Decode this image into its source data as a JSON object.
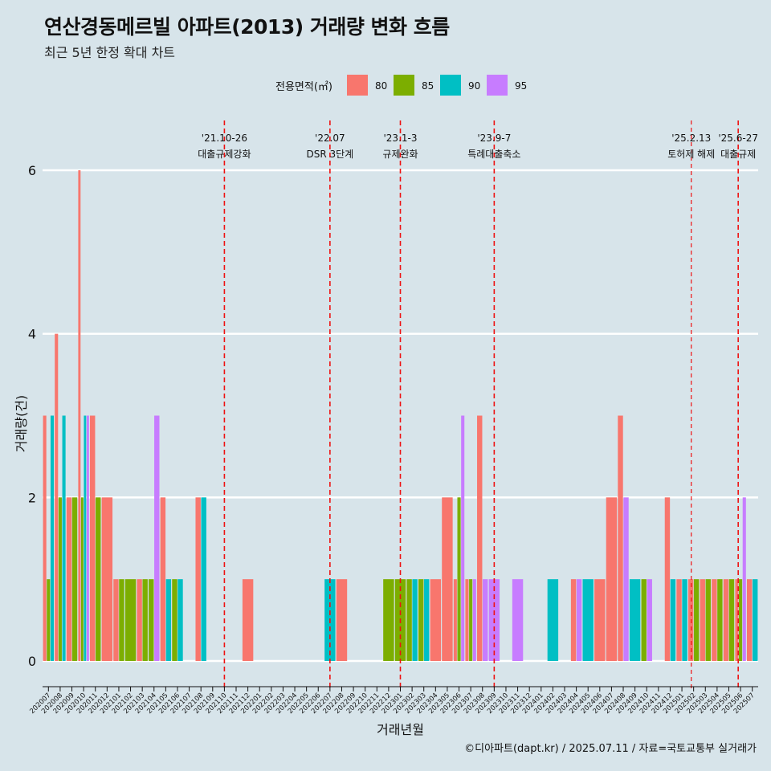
{
  "title": "연산경동메르빌 아파트(2013) 거래량 변화 흐름",
  "subtitle": "최근 5년 한정 확대 차트",
  "caption": "©디아파트(dapt.kr) / 2025.07.11 / 자료=국토교통부 실거래가",
  "chart_data": {
    "type": "bar",
    "xlabel": "거래년월",
    "ylabel": "거래량(건)",
    "ylim": [
      -0.3,
      6.6
    ],
    "yticks": [
      0,
      2,
      4,
      6
    ],
    "legend": {
      "title": "전용면적(㎡)",
      "position": "top",
      "items": [
        {
          "name": "80",
          "color": "#F8766D"
        },
        {
          "name": "85",
          "color": "#7CAE00"
        },
        {
          "name": "90",
          "color": "#00BFC4"
        },
        {
          "name": "95",
          "color": "#C77CFF"
        }
      ]
    },
    "categories": [
      "202007",
      "202008",
      "202009",
      "202010",
      "202011",
      "202012",
      "202101",
      "202102",
      "202103",
      "202104",
      "202105",
      "202106",
      "202107",
      "202108",
      "202109",
      "202110",
      "202111",
      "202112",
      "202201",
      "202202",
      "202203",
      "202204",
      "202205",
      "202206",
      "202207",
      "202208",
      "202209",
      "202210",
      "202211",
      "202212",
      "202301",
      "202302",
      "202303",
      "202304",
      "202305",
      "202306",
      "202307",
      "202308",
      "202309",
      "202310",
      "202311",
      "202312",
      "202401",
      "202402",
      "202403",
      "202404",
      "202405",
      "202406",
      "202407",
      "202408",
      "202409",
      "202410",
      "202411",
      "202412",
      "202501",
      "202502",
      "202503",
      "202504",
      "202505",
      "202506",
      "202507"
    ],
    "series": [
      {
        "name": "80",
        "values": [
          3,
          4,
          2,
          6,
          3,
          2,
          1,
          0,
          1,
          0,
          2,
          0,
          0,
          2,
          0,
          0,
          0,
          1,
          0,
          0,
          0,
          0,
          0,
          0,
          0,
          1,
          0,
          0,
          0,
          0,
          0,
          0,
          0,
          1,
          2,
          1,
          1,
          3,
          0,
          0,
          0,
          0,
          0,
          0,
          0,
          1,
          0,
          1,
          2,
          3,
          0,
          0,
          0,
          2,
          1,
          1,
          1,
          1,
          1,
          1,
          1
        ]
      },
      {
        "name": "85",
        "values": [
          1,
          2,
          2,
          2,
          2,
          0,
          1,
          1,
          1,
          1,
          0,
          1,
          0,
          0,
          0,
          0,
          0,
          0,
          0,
          0,
          0,
          0,
          0,
          0,
          0,
          0,
          0,
          0,
          0,
          1,
          1,
          1,
          1,
          0,
          0,
          2,
          1,
          0,
          0,
          0,
          0,
          0,
          0,
          0,
          0,
          0,
          0,
          0,
          0,
          0,
          0,
          1,
          0,
          0,
          0,
          1,
          1,
          1,
          1,
          1,
          0
        ]
      },
      {
        "name": "90",
        "values": [
          3,
          3,
          0,
          3,
          0,
          0,
          0,
          0,
          0,
          0,
          1,
          1,
          0,
          2,
          0,
          0,
          0,
          0,
          0,
          0,
          0,
          0,
          0,
          0,
          1,
          0,
          0,
          0,
          0,
          0,
          0,
          1,
          1,
          0,
          0,
          0,
          0,
          0,
          0,
          0,
          0,
          0,
          0,
          1,
          0,
          0,
          1,
          0,
          0,
          0,
          1,
          0,
          0,
          1,
          1,
          0,
          0,
          0,
          0,
          0,
          1
        ]
      },
      {
        "name": "95",
        "values": [
          0,
          0,
          0,
          3,
          0,
          0,
          0,
          0,
          0,
          3,
          0,
          0,
          0,
          0,
          0,
          0,
          0,
          0,
          0,
          0,
          0,
          0,
          0,
          0,
          0,
          0,
          0,
          0,
          0,
          0,
          0,
          0,
          0,
          0,
          0,
          3,
          1,
          1,
          1,
          0,
          1,
          0,
          0,
          0,
          0,
          1,
          0,
          0,
          0,
          2,
          0,
          1,
          0,
          0,
          0,
          0,
          0,
          0,
          0,
          2,
          0
        ]
      }
    ],
    "annotations": [
      {
        "x": 15.5,
        "date": "'21.10-26",
        "label": "대출규제강화",
        "dash": "long"
      },
      {
        "x": 24.5,
        "date": "'22.07",
        "label": "DSR 3단계",
        "dash": "long"
      },
      {
        "x": 30.5,
        "date": "'23.1-3",
        "label": "규제완화",
        "dash": "long"
      },
      {
        "x": 38.5,
        "date": "'23.9-7",
        "label": "특례대출축소",
        "dash": "long"
      },
      {
        "x": 55.3,
        "date": "'25.2.13",
        "label": "토허제 해제",
        "dash": "short"
      },
      {
        "x": 59.3,
        "date": "'25.6-27",
        "label": "대출규제",
        "dash": "long"
      }
    ]
  }
}
